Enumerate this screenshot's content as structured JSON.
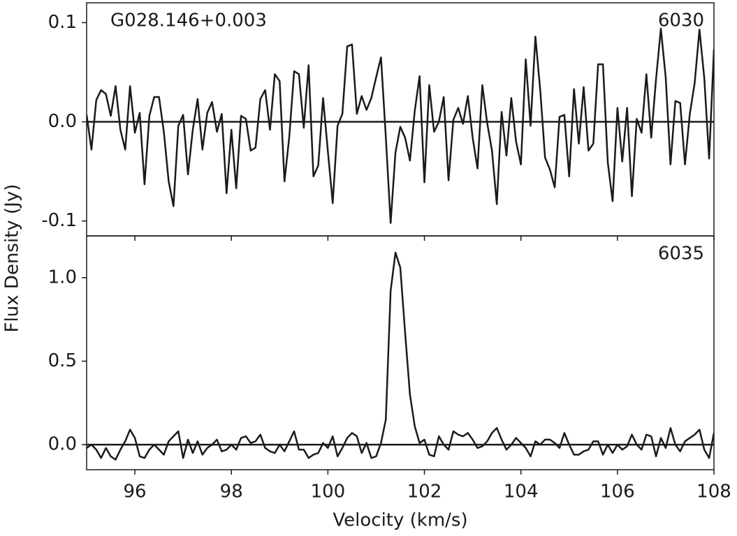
{
  "chart_data": [
    {
      "type": "line",
      "annotation": "G028.146+0.003",
      "label": "6030",
      "ylabel": "Flux Density (Jy)",
      "color": "#1a1a1a",
      "hline": 0,
      "ylim": [
        -0.115,
        0.12
      ],
      "yticks": [
        -0.1,
        {
          "value": 0,
          "label": "0.0"
        },
        0.1
      ],
      "x": [
        95,
        95.1,
        95.2,
        95.3,
        95.4,
        95.5,
        95.6,
        95.7,
        95.8,
        95.9,
        96,
        96.1,
        96.2,
        96.3,
        96.4,
        96.5,
        96.6,
        96.7,
        96.8,
        96.9,
        97,
        97.1,
        97.2,
        97.3,
        97.4,
        97.5,
        97.6,
        97.7,
        97.8,
        97.9,
        98,
        98.1,
        98.2,
        98.3,
        98.4,
        98.5,
        98.6,
        98.7,
        98.8,
        98.9,
        99,
        99.1,
        99.2,
        99.3,
        99.4,
        99.5,
        99.6,
        99.7,
        99.8,
        99.9,
        100,
        100.1,
        100.2,
        100.3,
        100.4,
        100.5,
        100.6,
        100.7,
        100.8,
        100.9,
        101,
        101.1,
        101.2,
        101.3,
        101.4,
        101.5,
        101.6,
        101.7,
        101.8,
        101.9,
        102,
        102.1,
        102.2,
        102.3,
        102.4,
        102.5,
        102.6,
        102.7,
        102.8,
        102.9,
        103,
        103.1,
        103.2,
        103.3,
        103.4,
        103.5,
        103.6,
        103.7,
        103.8,
        103.9,
        104,
        104.1,
        104.2,
        104.3,
        104.4,
        104.5,
        104.6,
        104.7,
        104.8,
        104.9,
        105,
        105.1,
        105.2,
        105.3,
        105.4,
        105.5,
        105.6,
        105.7,
        105.8,
        105.9,
        106,
        106.1,
        106.2,
        106.3,
        106.4,
        106.5,
        106.6,
        106.7,
        106.8,
        106.9,
        107,
        107.1,
        107.2,
        107.3,
        107.4,
        107.5,
        107.6,
        107.7,
        107.8,
        107.9,
        108
      ],
      "values": [
        0.007,
        -0.028,
        0.022,
        0.032,
        0.028,
        0.006,
        0.036,
        -0.008,
        -0.028,
        0.036,
        -0.011,
        0.009,
        -0.063,
        0.006,
        0.025,
        0.025,
        -0.01,
        -0.06,
        -0.085,
        -0.004,
        0.007,
        -0.053,
        -0.008,
        0.023,
        -0.028,
        0.009,
        0.02,
        -0.01,
        0.008,
        -0.072,
        -0.008,
        -0.067,
        0.006,
        0.003,
        -0.029,
        -0.026,
        0.023,
        0.032,
        -0.008,
        0.048,
        0.041,
        -0.06,
        -0.015,
        0.051,
        0.048,
        -0.006,
        0.057,
        -0.055,
        -0.044,
        0.024,
        -0.03,
        -0.082,
        -0.004,
        0.008,
        0.076,
        0.078,
        0.008,
        0.026,
        0.012,
        0.024,
        0.045,
        0.065,
        -0.015,
        -0.102,
        -0.031,
        -0.005,
        -0.016,
        -0.039,
        0.011,
        0.046,
        -0.061,
        0.037,
        -0.01,
        0.0,
        0.025,
        -0.059,
        0.002,
        0.014,
        -0.002,
        0.026,
        -0.016,
        -0.047,
        0.037,
        -0.001,
        -0.029,
        -0.083,
        0.01,
        -0.034,
        0.024,
        -0.02,
        -0.043,
        0.063,
        -0.004,
        0.086,
        0.032,
        -0.036,
        -0.048,
        -0.066,
        0.005,
        0.007,
        -0.055,
        0.033,
        -0.022,
        0.035,
        -0.029,
        -0.022,
        0.058,
        0.058,
        -0.041,
        -0.08,
        0.014,
        -0.04,
        0.014,
        -0.075,
        0.003,
        -0.011,
        0.048,
        -0.016,
        0.043,
        0.094,
        0.045,
        -0.043,
        0.021,
        0.019,
        -0.043,
        0.008,
        0.039,
        0.093,
        0.044,
        -0.037,
        0.073
      ]
    },
    {
      "type": "line",
      "label": "6035",
      "xlabel": "Velocity (km/s)",
      "color": "#1a1a1a",
      "hline": 0,
      "xlim": [
        95,
        108
      ],
      "xticks": [
        96,
        98,
        100,
        102,
        104,
        106,
        108
      ],
      "ylim": [
        -0.15,
        1.25
      ],
      "yticks": [
        {
          "value": 0,
          "label": "0.0"
        },
        0.5,
        {
          "value": 1,
          "label": "1.0"
        }
      ],
      "x": [
        95,
        95.1,
        95.2,
        95.3,
        95.4,
        95.5,
        95.6,
        95.7,
        95.8,
        95.9,
        96,
        96.1,
        96.2,
        96.3,
        96.4,
        96.5,
        96.6,
        96.7,
        96.8,
        96.9,
        97,
        97.1,
        97.2,
        97.3,
        97.4,
        97.5,
        97.6,
        97.7,
        97.8,
        97.9,
        98,
        98.1,
        98.2,
        98.3,
        98.4,
        98.5,
        98.6,
        98.7,
        98.8,
        98.9,
        99,
        99.1,
        99.2,
        99.3,
        99.4,
        99.5,
        99.6,
        99.7,
        99.8,
        99.9,
        100,
        100.1,
        100.2,
        100.3,
        100.4,
        100.5,
        100.6,
        100.7,
        100.8,
        100.9,
        101,
        101.1,
        101.2,
        101.3,
        101.4,
        101.5,
        101.6,
        101.7,
        101.8,
        101.9,
        102,
        102.1,
        102.2,
        102.3,
        102.4,
        102.5,
        102.6,
        102.7,
        102.8,
        102.9,
        103,
        103.1,
        103.2,
        103.3,
        103.4,
        103.5,
        103.6,
        103.7,
        103.8,
        103.9,
        104,
        104.1,
        104.2,
        104.3,
        104.4,
        104.5,
        104.6,
        104.7,
        104.8,
        104.9,
        105,
        105.1,
        105.2,
        105.3,
        105.4,
        105.5,
        105.6,
        105.7,
        105.8,
        105.9,
        106,
        106.1,
        106.2,
        106.3,
        106.4,
        106.5,
        106.6,
        106.7,
        106.8,
        106.9,
        107,
        107.1,
        107.2,
        107.3,
        107.4,
        107.5,
        107.6,
        107.7,
        107.8,
        107.9,
        108
      ],
      "values": [
        -0.02,
        0.0,
        -0.03,
        -0.08,
        -0.02,
        -0.07,
        -0.09,
        -0.03,
        0.02,
        0.09,
        0.04,
        -0.07,
        -0.08,
        -0.03,
        0.0,
        -0.03,
        -0.06,
        0.02,
        0.05,
        0.08,
        -0.08,
        0.03,
        -0.05,
        0.02,
        -0.06,
        -0.02,
        0.0,
        0.03,
        -0.04,
        -0.03,
        0.0,
        -0.03,
        0.04,
        0.05,
        0.01,
        0.02,
        0.06,
        -0.02,
        -0.04,
        -0.05,
        0.0,
        -0.04,
        0.02,
        0.08,
        -0.03,
        -0.03,
        -0.08,
        -0.06,
        -0.05,
        0.01,
        -0.02,
        0.05,
        -0.07,
        -0.02,
        0.04,
        0.07,
        0.05,
        -0.05,
        0.01,
        -0.08,
        -0.07,
        0.01,
        0.15,
        0.92,
        1.15,
        1.06,
        0.67,
        0.3,
        0.11,
        0.01,
        0.03,
        -0.06,
        -0.07,
        0.05,
        0.0,
        -0.03,
        0.08,
        0.06,
        0.05,
        0.07,
        0.03,
        -0.02,
        -0.01,
        0.02,
        0.07,
        0.1,
        0.03,
        -0.03,
        0.0,
        0.04,
        0.01,
        -0.02,
        -0.07,
        0.02,
        0.0,
        0.03,
        0.03,
        0.01,
        -0.02,
        0.07,
        0.0,
        -0.06,
        -0.06,
        -0.04,
        -0.03,
        0.02,
        0.02,
        -0.06,
        0.0,
        -0.05,
        0.0,
        -0.03,
        -0.01,
        0.06,
        0.0,
        -0.03,
        0.06,
        0.05,
        -0.07,
        0.04,
        -0.02,
        0.1,
        0.0,
        -0.04,
        0.02,
        0.04,
        0.06,
        0.09,
        -0.03,
        -0.08,
        0.07
      ]
    }
  ]
}
